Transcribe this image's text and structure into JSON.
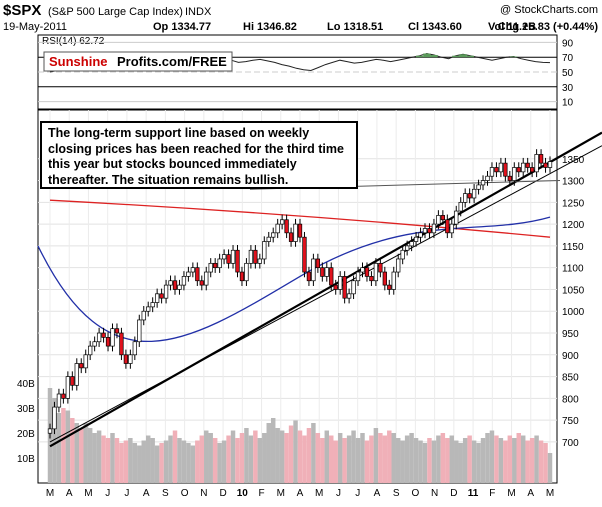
{
  "header": {
    "symbol": "$SPX",
    "name": "(S&P 500 Large Cap Index)",
    "exchange": "INDX",
    "brand": "@ StockCharts.com",
    "date": "19-May-2011",
    "open": "Op 1334.77",
    "high": "Hi 1346.82",
    "low": "Lo 1318.51",
    "close": "Cl 1343.60",
    "volume": "Vol 11.2B",
    "change": "Chg +5.83 (+0.44%)"
  },
  "rsi": {
    "label": "RSI(14) 62.72",
    "ticks": [
      "90",
      "70",
      "50",
      "30",
      "10"
    ],
    "values": [
      50,
      52,
      55,
      58,
      62,
      66,
      60,
      56,
      54,
      52,
      56,
      60,
      63,
      66,
      64,
      62,
      64,
      66,
      68,
      65,
      62,
      60,
      63,
      65,
      67,
      66,
      63,
      64,
      66,
      67,
      65,
      63,
      60,
      58,
      55,
      53,
      52,
      56,
      60,
      63,
      66,
      64,
      62,
      63,
      65,
      67,
      66,
      64,
      66,
      68,
      70,
      72,
      75,
      73,
      70,
      68,
      72,
      74,
      72,
      70,
      68,
      66,
      68,
      70,
      71,
      68,
      66,
      64,
      63,
      62.72
    ]
  },
  "watermark": {
    "red": "Sunshine",
    "black": "Profits.com/FREE"
  },
  "annotation": "The long-term support line based on weekly closing prices has been reached for the third time this year but stocks bounced immediately thereafter. The situation remains bullish.",
  "colors": {
    "bull": "#ffffff",
    "bear": "#e0121d",
    "ma_red": "#dd2222",
    "ma_blue": "#2230a8",
    "vol_up": "#b8b8b8",
    "vol_down": "#f0b0b8",
    "rsi_line": "#222222",
    "overbought": "#5a9a5a"
  },
  "chart_data": [
    {
      "type": "candlestick",
      "title": "$SPX (S&P 500 Large Cap Index) INDX",
      "x_labels": [
        "M",
        "A",
        "M",
        "J",
        "J",
        "A",
        "S",
        "O",
        "N",
        "D",
        "10",
        "F",
        "M",
        "A",
        "M",
        "J",
        "J",
        "A",
        "S",
        "O",
        "N",
        "D",
        "11",
        "F",
        "M",
        "A",
        "M"
      ],
      "price_ticks": [
        1350,
        1300,
        1250,
        1200,
        1150,
        1100,
        1050,
        1000,
        950,
        900,
        850,
        800,
        750,
        700
      ],
      "ylim": [
        670,
        1400
      ],
      "closes": [
        730,
        780,
        810,
        800,
        850,
        830,
        880,
        870,
        900,
        920,
        930,
        950,
        940,
        920,
        960,
        950,
        900,
        880,
        900,
        930,
        980,
        1000,
        1010,
        1020,
        1040,
        1030,
        1060,
        1070,
        1050,
        1060,
        1080,
        1090,
        1100,
        1070,
        1060,
        1090,
        1110,
        1100,
        1120,
        1130,
        1110,
        1140,
        1090,
        1070,
        1110,
        1140,
        1110,
        1120,
        1160,
        1170,
        1180,
        1200,
        1210,
        1180,
        1160,
        1200,
        1170,
        1090,
        1070,
        1120,
        1100,
        1080,
        1100,
        1060,
        1050,
        1080,
        1030,
        1040,
        1070,
        1090,
        1100,
        1080,
        1070,
        1110,
        1090,
        1060,
        1050,
        1090,
        1120,
        1140,
        1150,
        1160,
        1170,
        1180,
        1190,
        1180,
        1200,
        1220,
        1210,
        1180,
        1200,
        1230,
        1250,
        1270,
        1260,
        1280,
        1290,
        1300,
        1310,
        1330,
        1320,
        1340,
        1310,
        1300,
        1330,
        1320,
        1340,
        1330,
        1320,
        1360,
        1340,
        1330,
        1343.6
      ],
      "series": [
        {
          "name": "MA red",
          "values": [
            1255,
            1170
          ]
        },
        {
          "name": "MA blue",
          "values": [
            1150,
            890,
            1216
          ]
        }
      ],
      "volume_ticks": [
        "40B",
        "30B",
        "20B",
        "10B"
      ],
      "volume": [
        38,
        34,
        28,
        30,
        29,
        26,
        24,
        22,
        24,
        22,
        20,
        21,
        19,
        18,
        20,
        18,
        16,
        17,
        18,
        16,
        15,
        17,
        19,
        18,
        15,
        16,
        17,
        19,
        21,
        18,
        17,
        16,
        15,
        17,
        19,
        21,
        20,
        18,
        16,
        17,
        19,
        21,
        18,
        20,
        22,
        19,
        21,
        18,
        20,
        24,
        26,
        22,
        21,
        20,
        23,
        25,
        21,
        19,
        22,
        24,
        20,
        18,
        21,
        19,
        17,
        20,
        18,
        19,
        21,
        18,
        20,
        17,
        19,
        22,
        20,
        19,
        21,
        20,
        18,
        17,
        19,
        20,
        18,
        17,
        16,
        18,
        17,
        19,
        20,
        18,
        19,
        17,
        16,
        18,
        19,
        17,
        16,
        18,
        20,
        21,
        19,
        18,
        17,
        19,
        18,
        20,
        19,
        17,
        18,
        19,
        17,
        16,
        12
      ]
    }
  ]
}
